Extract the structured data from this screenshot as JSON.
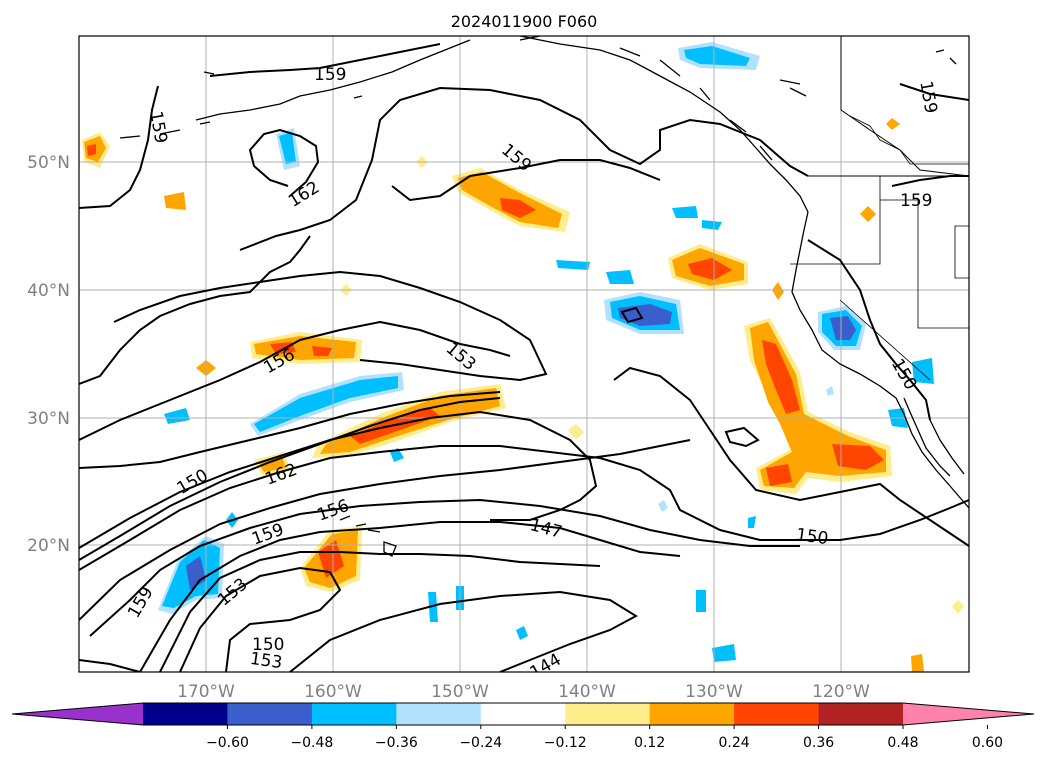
{
  "title": "2024011900 F060",
  "lat_labels": [
    "50°N",
    "40°N",
    "30°N",
    "20°N"
  ],
  "lon_labels": [
    "170°W",
    "160°W",
    "150°W",
    "140°W",
    "130°W",
    "120°W"
  ],
  "colorbar": {
    "ticks": [
      "−0.60",
      "−0.48",
      "−0.36",
      "−0.24",
      "−0.12",
      "0.12",
      "0.24",
      "0.36",
      "0.48",
      "0.60"
    ],
    "colors": [
      "#9932cc",
      "#00008b",
      "#3a5fcd",
      "#00bfff",
      "#b0e2ff",
      "#ffffff",
      "#ffec8b",
      "#ffa500",
      "#ff4500",
      "#b22222",
      "#ff82ab"
    ]
  },
  "contour_labels": [
    "159",
    "159",
    "159",
    "162",
    "159",
    "159",
    "156",
    "153",
    "150",
    "162",
    "156",
    "159",
    "147",
    "150",
    "150",
    "159",
    "153",
    "150",
    "153",
    "144"
  ],
  "colors": {
    "land_coast": "#000000",
    "grid": "#b0b0b0",
    "tick_label": "#808080"
  }
}
